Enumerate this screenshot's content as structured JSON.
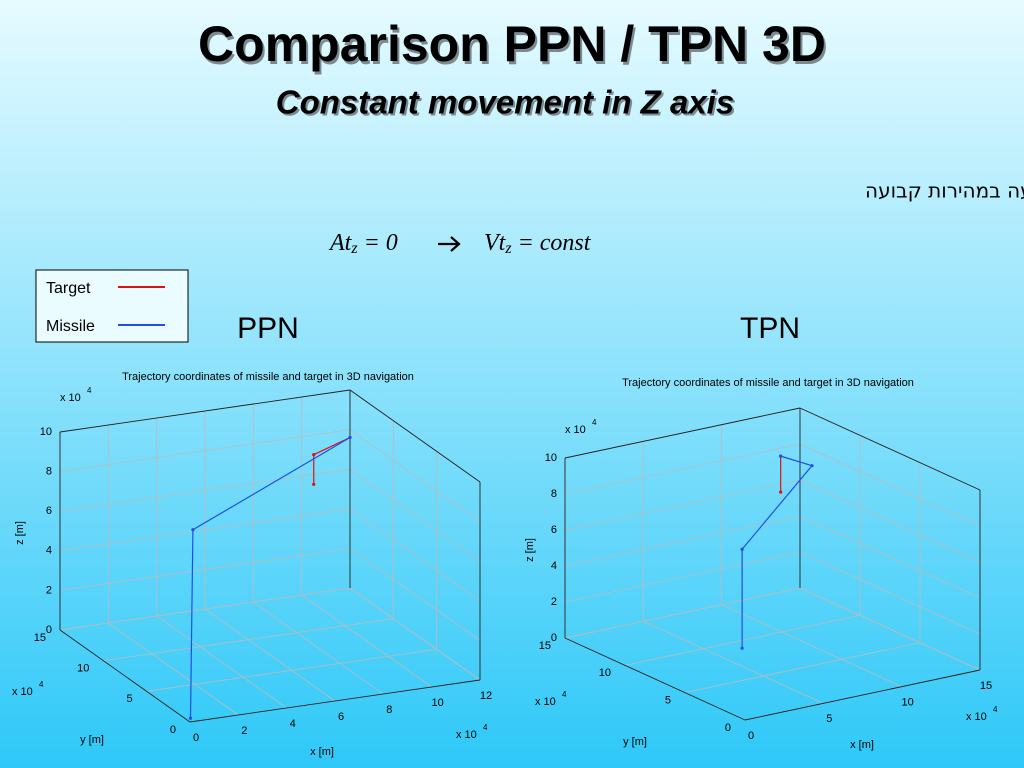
{
  "slide": {
    "title": "Comparison PPN / TPN 3D",
    "subtitle": "Constant movement in Z axis",
    "hebrew_text": "במערכת של ההיטל האנכי דרושה תנועה במהירות קבועה",
    "formula": {
      "left_var": "At",
      "left_sub": "z",
      "left_rest": " = 0",
      "right_var": "Vt",
      "right_sub": "z",
      "right_rest": " = const"
    },
    "legend": [
      {
        "label": "Target",
        "color": "#e01010"
      },
      {
        "label": "Missile",
        "color": "#2050e0"
      }
    ]
  },
  "chart_data": [
    {
      "type": "scatter3d",
      "heading": "PPN",
      "title": "Trajectory coordinates of missile and target in 3D navigation",
      "xlabel": "x [m]",
      "ylabel": "y [m]",
      "zlabel": "z [m]",
      "multiplier": "x 10",
      "multiplier_exp": "4",
      "xlim": [
        0,
        12
      ],
      "ylim": [
        0,
        15
      ],
      "zlim": [
        0,
        10
      ],
      "xticks": [
        0,
        2,
        4,
        6,
        8,
        10,
        12
      ],
      "yticks": [
        0,
        5,
        10,
        15
      ],
      "zticks": [
        0,
        2,
        4,
        6,
        8,
        10
      ],
      "series": [
        {
          "x": [
            10.5,
            10.5,
            12
          ],
          "y": [
            15,
            15,
            15
          ],
          "z": [
            5.5,
            7.0,
            7.6
          ]
        },
        {
          "x": [
            0.2,
            0.3,
            12
          ],
          "y": [
            0.5,
            0.5,
            15
          ],
          "z": [
            0,
            9.5,
            7.6
          ]
        }
      ]
    },
    {
      "type": "scatter3d",
      "heading": "TPN",
      "title": "Trajectory coordinates of missile and target in 3D navigation",
      "xlabel": "x [m]",
      "ylabel": "y [m]",
      "zlabel": "z [m]",
      "multiplier": "x 10",
      "multiplier_exp": "4",
      "xlim": [
        0,
        15
      ],
      "ylim": [
        0,
        15
      ],
      "zlim": [
        0,
        10
      ],
      "xticks": [
        0,
        5,
        10,
        15
      ],
      "yticks": [
        0,
        5,
        10,
        15
      ],
      "zticks": [
        0,
        2,
        4,
        6,
        8,
        10
      ],
      "series": [
        {
          "x": [
            13,
            13
          ],
          "y": [
            14,
            14
          ],
          "z": [
            6,
            8
          ]
        },
        {
          "x": [
            0.2,
            0.2,
            15,
            13
          ],
          "y": [
            0.5,
            0.5,
            14,
            14
          ],
          "z": [
            3.8,
            9.3,
            7.1,
            8
          ]
        }
      ]
    }
  ]
}
